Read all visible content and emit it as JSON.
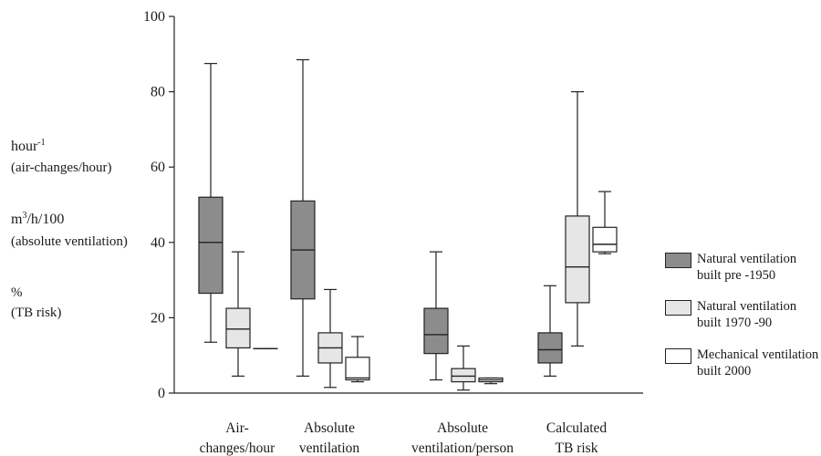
{
  "y_label_lines": {
    "l1": "hour",
    "l1_sup": "-1",
    "l2": "(air-changes/hour)",
    "l3_pre": "m",
    "l3_sup": "3",
    "l3_post": "/h/100",
    "l4": "(absolute ventilation)",
    "l5": "%",
    "l6": "(TB risk)"
  },
  "legend": [
    {
      "line1": "Natural ventilation",
      "line2": "built pre  -1950",
      "color": "#8c8c8c"
    },
    {
      "line1": "Natural ventilation",
      "line2": "built 1970 -90",
      "color": "#e6e6e6"
    },
    {
      "line1": "Mechanical ventilation",
      "line2": "built 2000",
      "color": "#ffffff"
    }
  ],
  "chart_data": {
    "type": "boxplot",
    "ylim": [
      0,
      100
    ],
    "yticks": [
      0,
      20,
      40,
      60,
      80,
      100
    ],
    "categories": [
      {
        "line1": "Air-",
        "line2": "changes/hour"
      },
      {
        "line1": "Absolute",
        "line2": "ventilation"
      },
      {
        "line1": "Absolute",
        "line2": "ventilation/person"
      },
      {
        "line1": "Calculated",
        "line2": "TB risk"
      }
    ],
    "series": [
      {
        "name": "Natural ventilation built pre -1950",
        "color": "#8c8c8c",
        "boxes": [
          {
            "min": 13.5,
            "q1": 26.5,
            "median": 40.0,
            "q3": 52.0,
            "max": 87.5
          },
          {
            "min": 4.5,
            "q1": 25.0,
            "median": 38.0,
            "q3": 51.0,
            "max": 88.5
          },
          {
            "min": 3.5,
            "q1": 10.5,
            "median": 15.5,
            "q3": 22.5,
            "max": 37.5
          },
          {
            "min": 4.5,
            "q1": 8.0,
            "median": 11.5,
            "q3": 16.0,
            "max": 28.5
          }
        ]
      },
      {
        "name": "Natural ventilation built 1970 -90",
        "color": "#e6e6e6",
        "boxes": [
          {
            "min": 4.5,
            "q1": 12.0,
            "median": 17.0,
            "q3": 22.5,
            "max": 37.5
          },
          {
            "min": 1.5,
            "q1": 8.0,
            "median": 12.0,
            "q3": 16.0,
            "max": 27.5
          },
          {
            "min": 0.8,
            "q1": 3.0,
            "median": 4.5,
            "q3": 6.5,
            "max": 12.5
          },
          {
            "min": 12.5,
            "q1": 24.0,
            "median": 33.5,
            "q3": 47.0,
            "max": 80.0
          }
        ]
      },
      {
        "name": "Mechanical ventilation built 2000",
        "color": "#ffffff",
        "boxes": [
          {
            "min": 11.8,
            "q1": 11.8,
            "median": 11.8,
            "q3": 11.8,
            "max": 11.8
          },
          {
            "min": 3.0,
            "q1": 3.5,
            "median": 4.0,
            "q3": 9.5,
            "max": 15.0
          },
          {
            "min": 2.5,
            "q1": 3.0,
            "median": 3.5,
            "q3": 4.0,
            "max": 4.0
          },
          {
            "min": 37.0,
            "q1": 37.5,
            "median": 39.5,
            "q3": 44.0,
            "max": 53.5
          }
        ]
      }
    ]
  }
}
